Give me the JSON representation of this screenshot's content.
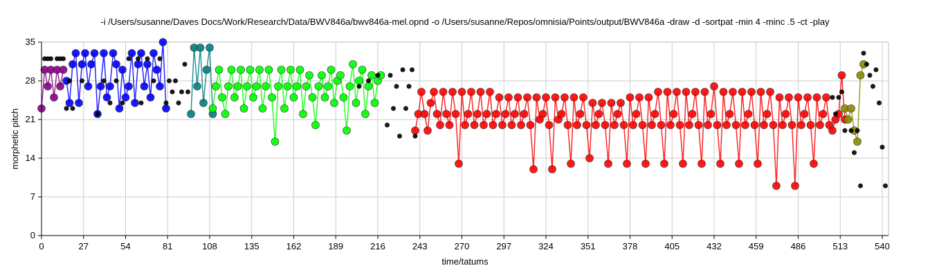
{
  "chart_data": {
    "type": "scatter",
    "title": "-i /Users/susanne/Daves Docs/Work/Research/Data/BWV846a/bwv846a-mel.opnd -o /Users/susanne/Repos/omnisia/Points/output/BWV846a -draw -d -sortpat -min 4 -minc .5 -ct -play",
    "xlabel": "time/tatums",
    "ylabel": "morphetic pitch",
    "xlim": [
      0,
      544
    ],
    "ylim": [
      0,
      35
    ],
    "xticks": [
      0,
      27,
      54,
      81,
      108,
      135,
      162,
      189,
      216,
      243,
      270,
      297,
      324,
      351,
      378,
      405,
      432,
      459,
      486,
      513,
      540
    ],
    "yticks": [
      0,
      7,
      14,
      21,
      28,
      35
    ],
    "grid": true,
    "series": [
      {
        "color": "#880088",
        "x": [
          0,
          2,
          4,
          6,
          8,
          10,
          12,
          14
        ],
        "y": [
          23,
          30,
          27,
          30,
          25,
          30,
          27,
          30
        ]
      },
      {
        "color": "#0000ff",
        "x": [
          16,
          18,
          20,
          22,
          24,
          26,
          28,
          30,
          32,
          34,
          36,
          38,
          40,
          42,
          44,
          46,
          48,
          50,
          52,
          54,
          56,
          58,
          60,
          62,
          64,
          66,
          68,
          70,
          72,
          74,
          76,
          78,
          80
        ],
        "y": [
          28,
          24,
          31,
          33,
          24,
          31,
          33,
          27,
          31,
          33,
          22,
          27,
          33,
          25,
          27,
          33,
          31,
          23,
          30,
          25,
          27,
          33,
          24,
          31,
          33,
          27,
          31,
          25,
          33,
          30,
          27,
          35,
          23
        ]
      },
      {
        "color": "#008080",
        "x": [
          96,
          98,
          100,
          102,
          104,
          106,
          108,
          110
        ],
        "y": [
          22,
          34,
          27,
          34,
          24,
          30,
          34,
          22
        ]
      },
      {
        "color": "#00ff00",
        "x": [
          110,
          112,
          114,
          116,
          118,
          120,
          122,
          124,
          126,
          128,
          130,
          132,
          134,
          136,
          138,
          140,
          142,
          144,
          146,
          148,
          150,
          152,
          154,
          156,
          158,
          160,
          162,
          164,
          166,
          168,
          170,
          172,
          174,
          176,
          178,
          180,
          182,
          184,
          186,
          188,
          190,
          192,
          194,
          196,
          198,
          200,
          202,
          204,
          206,
          208,
          210,
          212,
          214,
          216,
          218
        ],
        "y": [
          23,
          27,
          30,
          25,
          22,
          27,
          30,
          25,
          27,
          30,
          23,
          27,
          30,
          25,
          27,
          30,
          23,
          27,
          30,
          25,
          17,
          27,
          30,
          23,
          27,
          30,
          25,
          27,
          30,
          22,
          27,
          29,
          25,
          20,
          27,
          29,
          25,
          27,
          30,
          24,
          28,
          29,
          25,
          19,
          27,
          31,
          24,
          28,
          30,
          22,
          27,
          29,
          24,
          28,
          29
        ]
      },
      {
        "color": "#ff0000",
        "x": [
          240,
          242,
          244,
          246,
          248,
          250,
          252,
          254,
          256,
          258,
          260,
          262,
          264,
          266,
          268,
          270,
          272,
          274,
          276,
          278,
          280,
          282,
          284,
          286,
          288,
          290,
          292,
          294,
          296,
          298,
          300,
          302,
          304,
          306,
          308,
          310,
          312,
          314,
          316,
          318,
          320,
          322,
          324,
          326,
          328,
          330,
          332,
          334,
          336,
          338,
          340,
          342,
          344,
          346,
          348,
          350,
          352,
          354,
          356,
          358,
          360,
          362,
          364,
          366,
          368,
          370,
          372,
          374,
          376,
          378,
          380,
          382,
          384,
          386,
          388,
          390,
          392,
          394,
          396,
          398,
          400,
          402,
          404,
          406,
          408,
          410,
          412,
          414,
          416,
          418,
          420,
          422,
          424,
          426,
          428,
          430,
          432,
          434,
          436,
          438,
          440,
          442,
          444,
          446,
          448,
          450,
          452,
          454,
          456,
          458,
          460,
          462,
          464,
          466,
          468,
          470,
          472,
          474,
          476,
          478,
          480,
          482,
          484,
          486,
          488,
          490,
          492,
          494,
          496,
          498,
          500,
          502,
          504,
          506,
          508,
          510,
          512,
          514,
          516
        ],
        "y": [
          19,
          22,
          26,
          22,
          19,
          24,
          26,
          22,
          20,
          26,
          22,
          20,
          26,
          22,
          13,
          26,
          20,
          22,
          26,
          20,
          22,
          26,
          20,
          22,
          26,
          20,
          22,
          25,
          20,
          22,
          25,
          20,
          22,
          25,
          20,
          22,
          25,
          20,
          12,
          25,
          21,
          22,
          25,
          20,
          12,
          25,
          21,
          22,
          25,
          20,
          13,
          25,
          20,
          22,
          25,
          20,
          14,
          24,
          20,
          22,
          24,
          20,
          13,
          24,
          20,
          22,
          24,
          20,
          13,
          25,
          20,
          22,
          25,
          20,
          13,
          25,
          20,
          22,
          26,
          20,
          13,
          26,
          20,
          22,
          26,
          20,
          13,
          26,
          20,
          22,
          26,
          20,
          13,
          26,
          20,
          22,
          27,
          20,
          13,
          26,
          20,
          22,
          26,
          20,
          13,
          26,
          20,
          22,
          26,
          20,
          13,
          26,
          20,
          22,
          26,
          20,
          9,
          25,
          20,
          22,
          25,
          20,
          9,
          25,
          20,
          22,
          25,
          20,
          13,
          25,
          20,
          22,
          25,
          20,
          19,
          21,
          22,
          29,
          21
        ]
      },
      {
        "color": "#8b8b00",
        "x": [
          516,
          518,
          520,
          522,
          524,
          526,
          528
        ],
        "y": [
          23,
          21,
          23,
          19,
          17,
          29,
          31
        ]
      },
      {
        "color": "#000000",
        "x": [
          2,
          4,
          6,
          10,
          12,
          14,
          16,
          18,
          20,
          26,
          36,
          40,
          44,
          48,
          52,
          56,
          62,
          64,
          68,
          72,
          76,
          80,
          82,
          84,
          86,
          88,
          90,
          92,
          94,
          204,
          210,
          216,
          222,
          224,
          226,
          228,
          230,
          232,
          234,
          236,
          238,
          240,
          508,
          510,
          512,
          514,
          516,
          520,
          522,
          524,
          526,
          528,
          530,
          532,
          534,
          536,
          538,
          540,
          542
        ],
        "y": [
          32,
          32,
          32,
          32,
          32,
          32,
          23,
          28,
          23,
          28,
          22,
          28,
          24,
          28,
          24,
          32,
          32,
          24,
          32,
          28,
          32,
          24,
          28,
          26,
          28,
          24,
          26,
          31,
          26,
          27,
          28,
          29,
          20,
          29,
          23,
          27,
          18,
          30,
          23,
          27,
          30,
          18,
          25,
          22,
          25,
          26,
          19,
          19,
          15,
          19,
          9,
          33,
          31,
          29,
          27,
          30,
          24,
          16,
          9
        ]
      }
    ]
  }
}
